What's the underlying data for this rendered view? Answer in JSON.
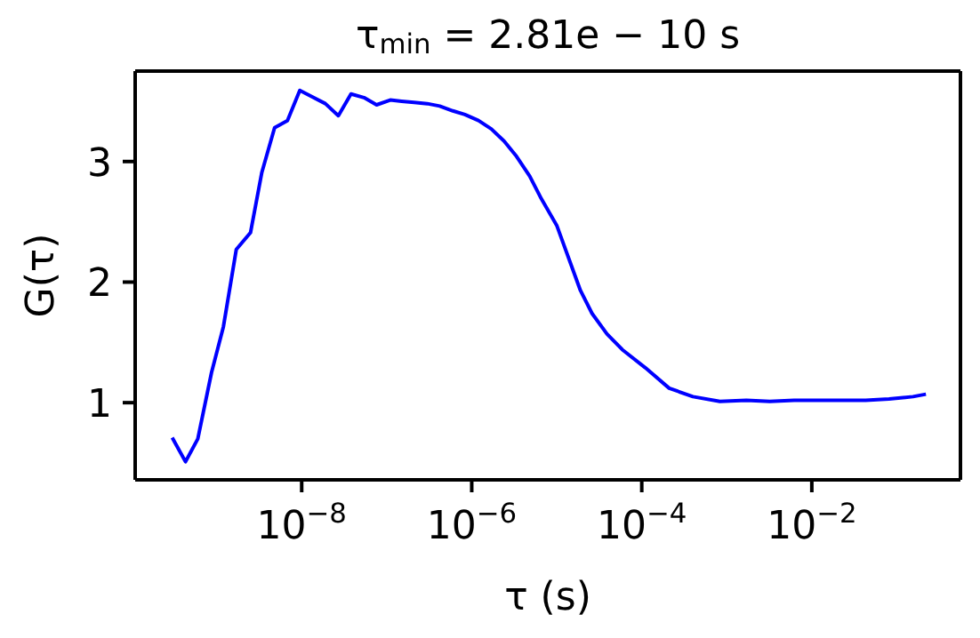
{
  "chart_data": {
    "type": "line",
    "title": "τ$_{min}$ = 2.81e − 10 s",
    "xlabel": "τ (s)",
    "ylabel": "G(τ)",
    "log": "x",
    "grid": false,
    "legend": false,
    "marker": "none",
    "line_style": "solid",
    "xlim": [
      1.1e-10,
      0.56
    ],
    "xticks": [
      {
        "value": 1e-08,
        "label": "10$^{−8}$"
      },
      {
        "value": 1e-06,
        "label": "10$^{−6}$"
      },
      {
        "value": 0.0001,
        "label": "10$^{−4}$"
      },
      {
        "value": 0.01,
        "label": "10$^{−2}$"
      }
    ],
    "ylim": [
      0.36,
      3.75
    ],
    "yticks": [
      1,
      2,
      3
    ],
    "x": [
      3e-10,
      4.3e-10,
      6e-10,
      8.7e-10,
      1.2e-09,
      1.7e-09,
      2.5e-09,
      3.4e-09,
      4.8e-09,
      6.8e-09,
      9.5e-09,
      1.3e-08,
      1.9e-08,
      2.7e-08,
      3.8e-08,
      5.4e-08,
      7.6e-08,
      1.1e-07,
      1.5e-07,
      2.1e-07,
      3e-07,
      4.2e-07,
      6e-07,
      8.3e-07,
      1.2e-06,
      1.7e-06,
      2.4e-06,
      3.3e-06,
      4.8e-06,
      6.6e-06,
      1e-05,
      1.9e-05,
      2.6e-05,
      3.9e-05,
      5.9e-05,
      0.00011,
      0.00021,
      0.0004,
      0.00083,
      0.0017,
      0.0032,
      0.0062,
      0.012,
      0.022,
      0.043,
      0.081,
      0.155,
      0.22
    ],
    "series": [
      {
        "color": "#0000ff",
        "values": [
          0.71,
          0.51,
          0.7,
          1.25,
          1.63,
          2.27,
          2.41,
          2.91,
          3.28,
          3.34,
          3.59,
          3.54,
          3.48,
          3.38,
          3.56,
          3.53,
          3.47,
          3.51,
          3.5,
          3.49,
          3.48,
          3.46,
          3.42,
          3.39,
          3.34,
          3.27,
          3.17,
          3.05,
          2.88,
          2.69,
          2.47,
          1.93,
          1.74,
          1.57,
          1.44,
          1.29,
          1.12,
          1.05,
          1.01,
          1.02,
          1.01,
          1.02,
          1.02,
          1.02,
          1.02,
          1.03,
          1.05,
          1.07
        ]
      }
    ]
  }
}
